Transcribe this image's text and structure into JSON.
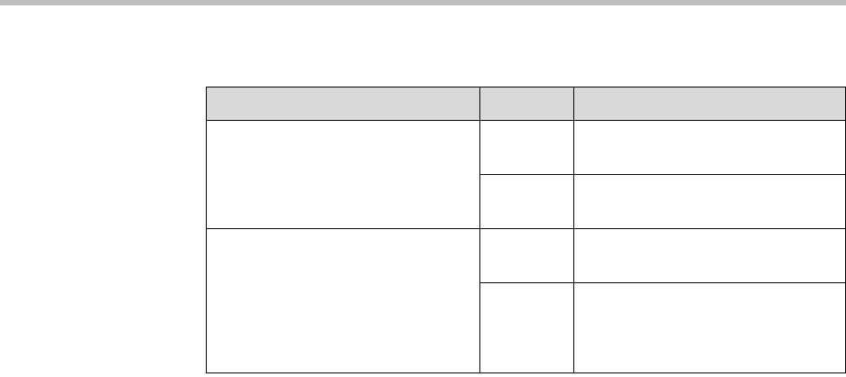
{
  "colors": {
    "top_bar": "#bfbfbf",
    "header_bg": "#d9d9d9",
    "border": "#000000"
  },
  "table": {
    "headers": [
      "",
      "",
      ""
    ],
    "rows": [
      [
        "",
        "",
        ""
      ],
      [
        "",
        ""
      ],
      [
        "",
        "",
        ""
      ],
      [
        "",
        ""
      ]
    ]
  }
}
